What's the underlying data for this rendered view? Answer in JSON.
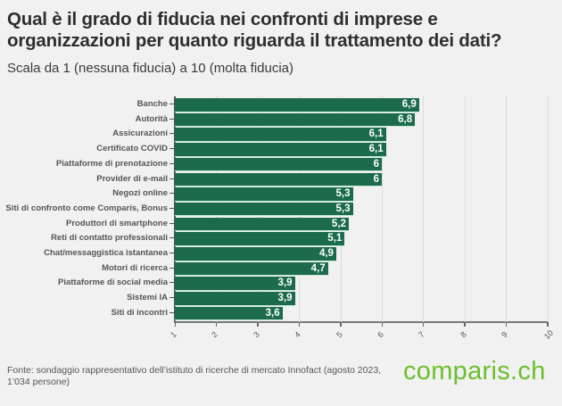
{
  "header": {
    "title": "Qual è il grado di fiducia nei confronti di imprese e organizzazioni per quanto riguarda il trattamento dei dati?",
    "subtitle": "Scala da 1 (nessuna fiducia) a 10 (molta fiducia)"
  },
  "footer": {
    "source": "Fonte: sondaggio rappresentativo dell’istituto di ricerche di mercato Innofact (agosto 2023, 1’034 persone)",
    "logo": "comparis.ch"
  },
  "colors": {
    "bar": "#1c6b4d",
    "logo": "#6cbf2c",
    "background": "#f1f1f1"
  },
  "chart_data": {
    "type": "bar",
    "orientation": "horizontal",
    "title": "Qual è il grado di fiducia nei confronti di imprese e organizzazioni per quanto riguarda il trattamento dei dati?",
    "subtitle": "Scala da 1 (nessuna fiducia) a 10 (molta fiducia)",
    "categories": [
      "Banche",
      "Autorità",
      "Assicurazioni",
      "Certificato COVID",
      "Piattaforme di prenotazione",
      "Provider di e-mail",
      "Negozi online",
      "Siti di confronto come Comparis, Bonus",
      "Produttori di smartphone",
      "Reti di contatto professionali",
      "Chat/messaggistica istantanea",
      "Motori di ricerca",
      "Piattaforme di social media",
      "Sistemi IA",
      "Siti di incontri"
    ],
    "values": [
      6.9,
      6.8,
      6.1,
      6.1,
      6,
      6,
      5.3,
      5.3,
      5.2,
      5.1,
      4.9,
      4.7,
      3.9,
      3.9,
      3.6
    ],
    "value_labels": [
      "6,9",
      "6,8",
      "6,1",
      "6,1",
      "6",
      "6",
      "5,3",
      "5,3",
      "5,2",
      "5,1",
      "4,9",
      "4,7",
      "3,9",
      "3,9",
      "3,6"
    ],
    "xlim": [
      1,
      10
    ],
    "xticks": [
      "1",
      "2",
      "3",
      "4",
      "5",
      "6",
      "7",
      "8",
      "9",
      "10"
    ],
    "xlabel": "",
    "ylabel": "",
    "grid": true,
    "source": "Fonte: sondaggio rappresentativo dell’istituto di ricerche di mercato Innofact (agosto 2023, 1’034 persone)"
  }
}
